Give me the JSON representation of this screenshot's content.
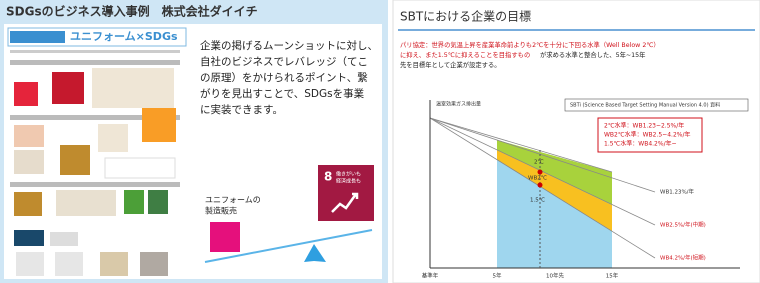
{
  "left_slide": {
    "title": "SDGsのビジネス導入事例　株式会社ダイイチ",
    "banner": "ユニフォーム×SDGs",
    "body": [
      "企業の掲げるムーンショットに対し、",
      "自社のビジネスでレバレッジ（てこ",
      "の原理）をかけられるポイント、繋",
      "がりを見出すことで、SDGsを事業",
      "に実装できます。"
    ],
    "label": [
      "ユニフォームの",
      "製造販売"
    ],
    "sdg_tile": {
      "number": "8",
      "text": [
        "働きがいも",
        "経済成長も"
      ]
    }
  },
  "right_slide": {
    "title": "SBTにおける企業の目標",
    "intro_red": [
      "パリ協定：世界の気温上昇を産業革命前よりも2℃を十分に下回る水準（Well Below 2℃）",
      "に抑え、また1.5℃に抑えることを目指すもの"
    ],
    "intro_black": [
      "が求める水準と整合した、5年~15年",
      "先を目標年として企業が設定する。"
    ],
    "chart": {
      "y_label": "温室効果ガス排出量",
      "source": "SBTi (Science Based Target Setting Manual Version 4.0) 資料",
      "levels": [
        "2℃水準：WB1.23~2.5%/年",
        "WB2℃水準：WB2.5~4.2%/年",
        "1.5℃水準：WB4.2%/年~"
      ],
      "zone_labels": [
        "2℃",
        "WB2℃",
        "1.5℃"
      ],
      "right_labels": [
        "WB1.23%/年",
        "WB2.5%/年(中期)",
        "WB4.2%/年(短期)"
      ],
      "x_labels": [
        "基準年",
        "5年",
        "10年先",
        "15年"
      ]
    }
  }
}
